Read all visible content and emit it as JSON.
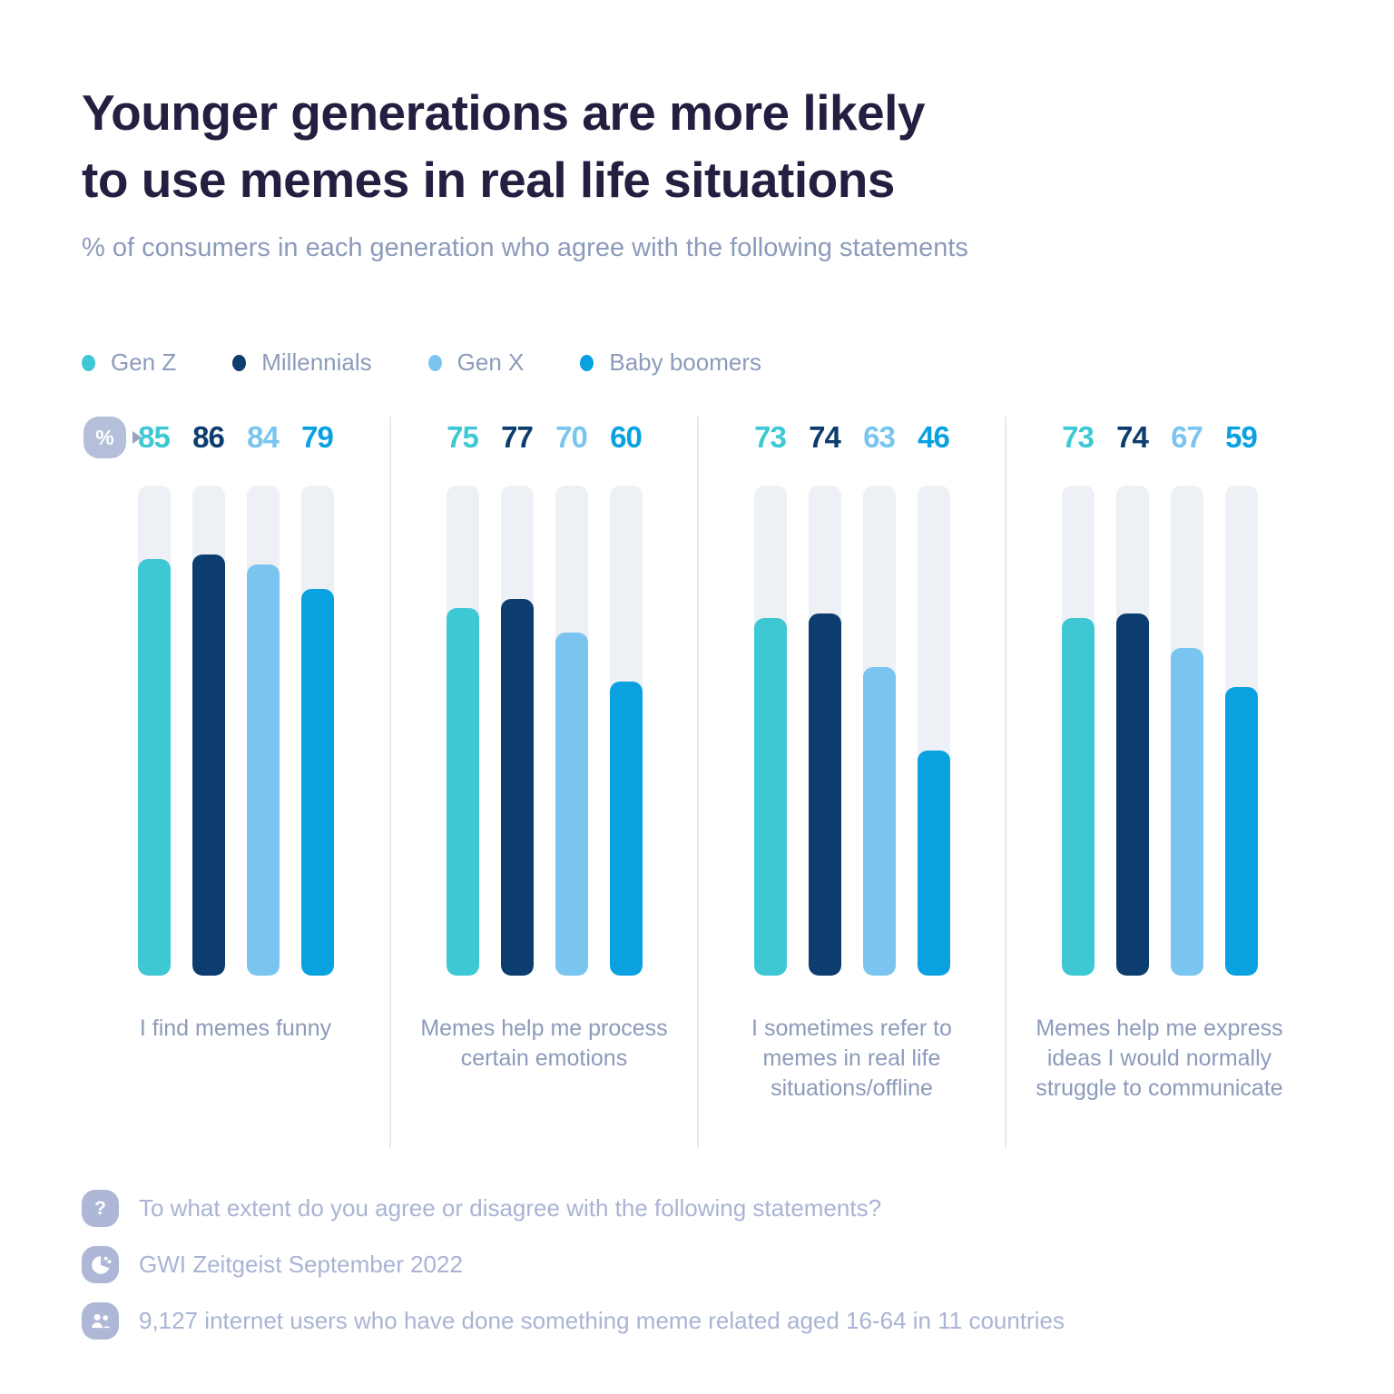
{
  "header": {
    "title_line1": "Younger generations are more likely",
    "title_line2": "to use memes in real life situations",
    "subtitle": "% of consumers in each generation who agree with the following statements"
  },
  "percent_badge": {
    "label": "%"
  },
  "chart_data": {
    "type": "bar",
    "title": "Younger generations are more likely to use memes in real life situations",
    "subtitle": "% of consumers in each generation who agree with the following statements",
    "unit": "%",
    "ylim": [
      0,
      100
    ],
    "grid": false,
    "legend_position": "top",
    "value_labels_shown": true,
    "track_color": "#EDF1F6",
    "categories": [
      "I find memes funny",
      "Memes help me process certain emotions",
      "I sometimes refer to memes in real life situations/offline",
      "Memes help me express ideas I would normally struggle to communicate"
    ],
    "series": [
      {
        "name": "Gen Z",
        "color": "#3EC8D4",
        "values": [
          85,
          75,
          73,
          73
        ]
      },
      {
        "name": "Millennials",
        "color": "#0D3D6E",
        "values": [
          86,
          77,
          74,
          74
        ]
      },
      {
        "name": "Gen X",
        "color": "#7AC5EF",
        "values": [
          84,
          70,
          63,
          67
        ]
      },
      {
        "name": "Baby boomers",
        "color": "#0AA1E1",
        "values": [
          79,
          60,
          46,
          59
        ]
      }
    ]
  },
  "footer": {
    "rows": [
      {
        "icon": "question-icon",
        "text": "To what extent do you agree or disagree with the following statements?"
      },
      {
        "icon": "gwi-logo-icon",
        "text": "GWI Zeitgeist September 2022"
      },
      {
        "icon": "audience-icon",
        "text": "9,127 internet users who have done something meme related aged 16-64 in 11 countries"
      }
    ]
  }
}
